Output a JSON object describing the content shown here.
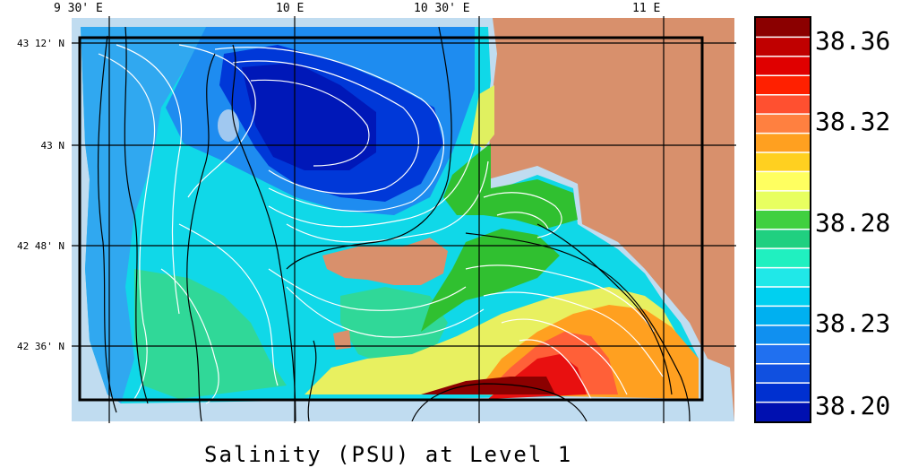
{
  "title": "Salinity (PSU) at Level 1",
  "longitude_labels": [
    "9 30' E",
    "10 E",
    "10 30' E",
    "11 E"
  ],
  "latitude_labels": [
    "43 12' N",
    "43 N",
    "42 48' N",
    "42 36' N"
  ],
  "colorbar": {
    "labels": [
      "38.36",
      "38.32",
      "38.28",
      "38.23",
      "38.20"
    ],
    "colors": [
      "#8b0000",
      "#c00000",
      "#e00000",
      "#ff2000",
      "#ff5030",
      "#ff8040",
      "#ffa020",
      "#ffd020",
      "#ffff60",
      "#e8ff60",
      "#40d040",
      "#20d080",
      "#20f0c0",
      "#20e8e8",
      "#00d0f0",
      "#00b0f0",
      "#1090f0",
      "#2070f0",
      "#1050e0",
      "#0030d0",
      "#0010b0"
    ]
  },
  "colors": {
    "land": "#d8906c",
    "shelf": "#c0dcf0",
    "grid": "#000000",
    "contour": "#ffffff"
  }
}
